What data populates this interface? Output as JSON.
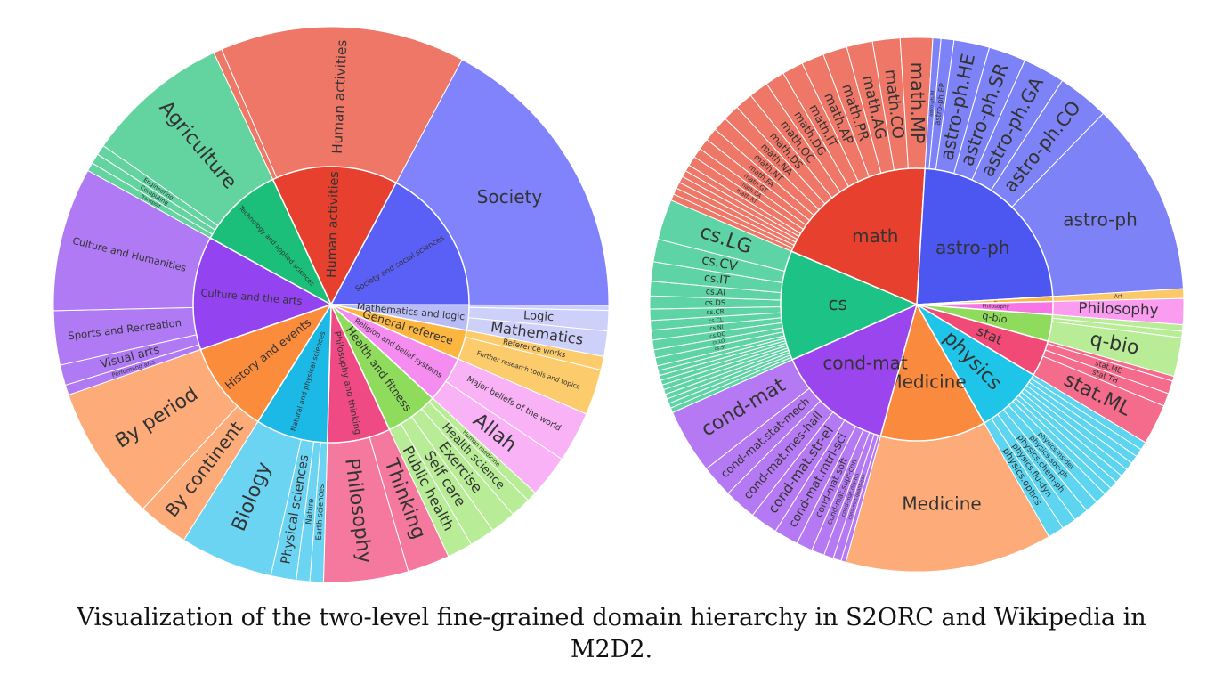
{
  "chart_data": [
    {
      "type": "sunburst",
      "parents": [
        {
          "name": "Human activities",
          "color": "#e8402f",
          "outer_color": "#ef7767",
          "labels": [
            null,
            "Human activities"
          ],
          "values": [
            0.5,
            14.5
          ]
        },
        {
          "name": "Society and social sciences",
          "color": "#5a5ff5",
          "outer_color": "#8083fb",
          "labels": [
            "Society"
          ],
          "values": [
            17.5
          ]
        },
        {
          "name": "Mathematics and logic",
          "color": "#b9bdf6",
          "outer_color": "#cdd0f8",
          "labels": [
            null,
            "Logic",
            "Mathematics"
          ],
          "values": [
            0.3,
            1.2,
            1.5
          ]
        },
        {
          "name": "General referece",
          "color": "#fbb63f",
          "outer_color": "#fccb6c",
          "labels": [
            "Reference works",
            "Further research tools and topics"
          ],
          "values": [
            0.8,
            2.7
          ]
        },
        {
          "name": "Religion and belief systems",
          "color": "#f58cf0",
          "outer_color": "#f9b2f6",
          "labels": [
            "Major beliefs of the world",
            "Allah"
          ],
          "values": [
            3,
            2.5
          ]
        },
        {
          "name": "Health and fitness",
          "color": "#8fdc5c",
          "outer_color": "#b8ec97",
          "labels": [
            "Human medicine",
            "Health science",
            "Exercise",
            "Self care",
            "Public health"
          ],
          "values": [
            0.6,
            1.2,
            1.5,
            1.5,
            1.5
          ]
        },
        {
          "name": "Philosophy and thinking",
          "color": "#ef4a84",
          "outer_color": "#f5799f",
          "labels": [
            "Thinking",
            "Philosophy"
          ],
          "values": [
            2.5,
            5
          ]
        },
        {
          "name": "Natural and physical sciences",
          "color": "#1cb9e6",
          "outer_color": "#6bd4f3",
          "labels": [
            "Earth sciences",
            "Nature",
            "Physical sciences",
            "Biology"
          ],
          "values": [
            0.8,
            0.8,
            1.5,
            5.5
          ]
        },
        {
          "name": "History and events",
          "color": "#fb8c3c",
          "outer_color": "#fdab79",
          "labels": [
            "By continent",
            "By period"
          ],
          "values": [
            3,
            8
          ]
        },
        {
          "name": "Culture and the arts",
          "color": "#9443f0",
          "outer_color": "#b07af5",
          "labels": [
            "Performing arts",
            "Visual arts",
            "Sports and Recreation",
            "Culture and Humanities"
          ],
          "values": [
            0.6,
            1.2,
            3.2,
            8.5
          ]
        },
        {
          "name": "Technology and applied sciences",
          "color": "#1bbf7a",
          "outer_color": "#63d3a0",
          "labels": [
            "Transport",
            "Computing",
            "Engineering",
            "Agriculture"
          ],
          "values": [
            0.5,
            0.6,
            0.6,
            8.5
          ]
        }
      ]
    },
    {
      "type": "sunburst",
      "parents": [
        {
          "name": "math",
          "color": "#e8402f",
          "outer_color": "#ef7767",
          "labels": [
            null,
            null,
            null,
            null,
            null,
            null,
            "math.RT",
            "math.CA",
            "math.GT",
            "math.FA",
            "math.NT",
            "math.NA",
            "math.DS",
            "math.OC",
            "math.DG",
            "math.IT",
            "math.AP",
            "math.PR",
            "math.AG",
            "math.CO",
            "math.MP"
          ],
          "values": [
            0.4,
            0.4,
            0.4,
            0.4,
            0.4,
            0.4,
            0.6,
            0.6,
            0.7,
            0.8,
            0.9,
            1.0,
            1.1,
            1.2,
            1.2,
            1.3,
            1.4,
            1.5,
            1.6,
            1.7,
            2.0
          ]
        },
        {
          "name": "astro-ph",
          "color": "#4c56f0",
          "outer_color": "#7d83f7",
          "labels": [
            "astro-ph.IM",
            "astro-ph.EP",
            "astro-ph.HE",
            "astro-ph.SR",
            "astro-ph.GA",
            "astro-ph.CO",
            "astro-ph"
          ],
          "values": [
            0.5,
            0.8,
            2.2,
            2.3,
            2.6,
            3.2,
            12
          ]
        },
        {
          "name": "Art",
          "color": "#f9b640",
          "outer_color": "#fcc96a",
          "labels": [
            "Art"
          ],
          "values": [
            0.6
          ]
        },
        {
          "name": "Philosophy",
          "color": "#f775e5",
          "outer_color": "#fa9df0",
          "labels": [
            "Philosophy"
          ],
          "values": [
            1.6
          ]
        },
        {
          "name": "q-bio",
          "color": "#8fdc5c",
          "outer_color": "#b8ec97",
          "labels": [
            null,
            null,
            "q-bio"
          ],
          "values": [
            0.4,
            0.4,
            2.4
          ]
        },
        {
          "name": "stat",
          "color": "#f14a76",
          "outer_color": "#f46b8c",
          "labels": [
            null,
            "stat.ME",
            "stat.TH",
            "stat.ML"
          ],
          "values": [
            0.3,
            0.8,
            0.8,
            2.5
          ]
        },
        {
          "name": "physics",
          "color": "#1ec5e8",
          "outer_color": "#5dd5f0",
          "labels": [
            null,
            null,
            null,
            null,
            null,
            null,
            null,
            null,
            "physics.ins-det",
            "physics.soc-ph",
            "physics.chem-ph",
            "physics.flu-dyn",
            "physics.optics"
          ],
          "values": [
            0.5,
            0.5,
            0.5,
            0.5,
            0.5,
            0.5,
            0.5,
            0.5,
            0.7,
            0.8,
            0.9,
            0.9,
            1.0
          ]
        },
        {
          "name": "Medicine",
          "color": "#f98a3e",
          "outer_color": "#fdab79",
          "labels": [
            "Medicine"
          ],
          "values": [
            12.8
          ]
        },
        {
          "name": "cond-mat",
          "color": "#9b45ee",
          "outer_color": "#b57af3",
          "labels": [
            null,
            "cond-mat.quant-gas",
            "cond-mat.dis-nn",
            "cond-mat.supr-con",
            "cond-mat.soft",
            "cond-mat.mtrl-sci",
            "cond-mat.str-el",
            "cond-mat.mes-hall",
            "cond-mat.stat-mech",
            "cond-mat"
          ],
          "values": [
            0.3,
            0.5,
            0.6,
            0.8,
            1.0,
            1.5,
            1.7,
            2.0,
            2.0,
            4.0
          ]
        },
        {
          "name": "cs",
          "color": "#1cc286",
          "outer_color": "#5ed4a6",
          "labels": [
            null,
            null,
            null,
            null,
            null,
            null,
            null,
            null,
            null,
            null,
            "cs.SI",
            "cs.LO",
            "cs.DC",
            "cs.NI",
            "cs.CL",
            "cs.CR",
            "cs.DS",
            "cs.AI",
            "cs.IT",
            "cs.CV",
            "cs.LG"
          ],
          "values": [
            0.3,
            0.3,
            0.3,
            0.3,
            0.3,
            0.3,
            0.3,
            0.3,
            0.3,
            0.3,
            0.5,
            0.5,
            0.6,
            0.6,
            0.6,
            0.7,
            0.8,
            0.9,
            1.2,
            1.4,
            2.5
          ]
        }
      ]
    }
  ],
  "caption": "Visualization of the two-level fine-grained domain hierarchy in S2ORC and Wikipedia in M2D2."
}
